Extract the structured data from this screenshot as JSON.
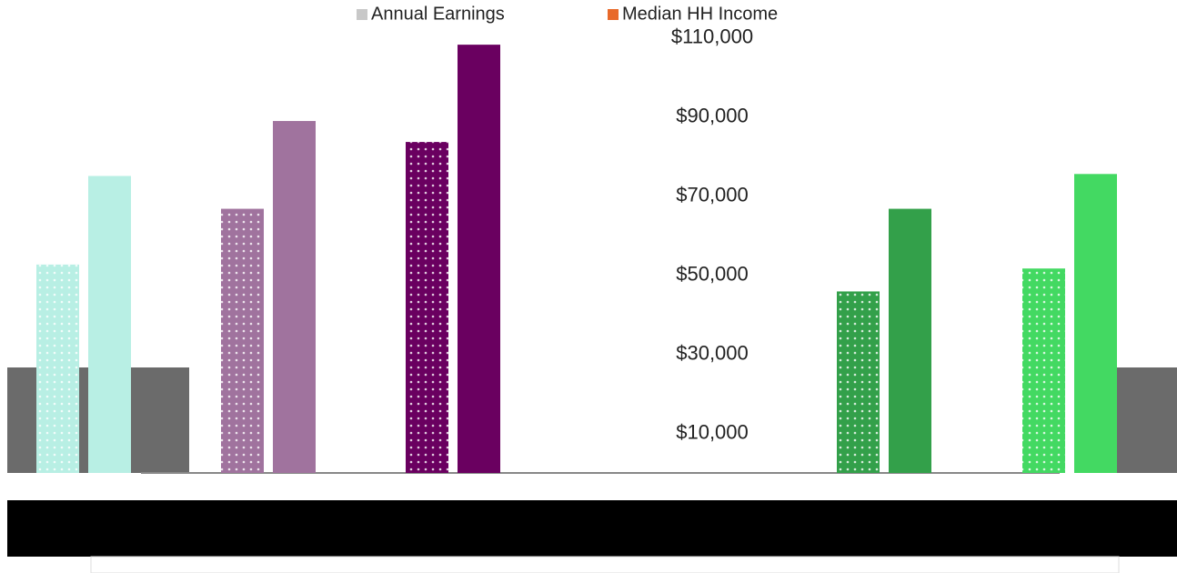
{
  "chart_data": {
    "type": "bar",
    "categories": [
      null,
      null,
      null,
      null,
      null,
      null
    ],
    "series": [
      {
        "name": "Annual Earnings",
        "color": "#c8c8c8",
        "pattern": "dots",
        "colors": [
          "#b8efe4",
          "#a0739e",
          "#6a0060",
          "#cccccc",
          "#33a04a",
          "#43d962"
        ],
        "values": [
          52700,
          66800,
          83700,
          null,
          45900,
          51700
        ]
      },
      {
        "name": "Median HH Income",
        "color": "#e8692a",
        "pattern": "solid",
        "colors": [
          "#b8efe4",
          "#a0739e",
          "#6a0060",
          "#cccccc",
          "#33a04a",
          "#43d962"
        ],
        "values": [
          75100,
          89000,
          108300,
          null,
          66800,
          75600
        ]
      }
    ],
    "ylim": [
      0,
      115000
    ],
    "yticks": [
      {
        "value": 10000,
        "label": "$10,000"
      },
      {
        "value": 30000,
        "label": "$30,000"
      },
      {
        "value": 50000,
        "label": "$50,000"
      },
      {
        "value": 70000,
        "label": "$70,000"
      },
      {
        "value": 90000,
        "label": "$90,000"
      },
      {
        "value": 110000,
        "label": "$110,000"
      }
    ],
    "grid": false
  }
}
